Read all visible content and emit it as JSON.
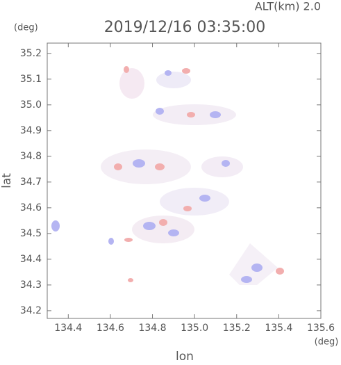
{
  "chart_data": {
    "type": "map",
    "alt_label": "ALT(km) 2.0",
    "title": "2019/12/16 03:35:00",
    "y_unit": "(deg)",
    "x_unit": "(deg)",
    "x_label": "lon",
    "y_label": "lat",
    "xlim": [
      134.3,
      135.6
    ],
    "ylim": [
      34.17,
      35.24
    ],
    "xticks": [
      134.4,
      134.6,
      134.8,
      {
        "value": 135,
        "label": "135.0"
      },
      135.2,
      135.4,
      135.6
    ],
    "yticks": [
      {
        "value": 34.2,
        "label": "34.2"
      },
      {
        "value": 34.3,
        "label": "34.3"
      },
      {
        "value": 34.4,
        "label": "34.4"
      },
      {
        "value": 34.5,
        "label": "34.5"
      },
      {
        "value": 34.6,
        "label": "34.6"
      },
      {
        "value": 34.7,
        "label": "34.7"
      },
      {
        "value": 34.8,
        "label": "34.8"
      },
      {
        "value": 34.9,
        "label": "34.9"
      },
      {
        "value": 35,
        "label": "35.0"
      },
      {
        "value": 35.1,
        "label": "35.1"
      },
      {
        "value": 35.2,
        "label": "35.2"
      }
    ]
  }
}
